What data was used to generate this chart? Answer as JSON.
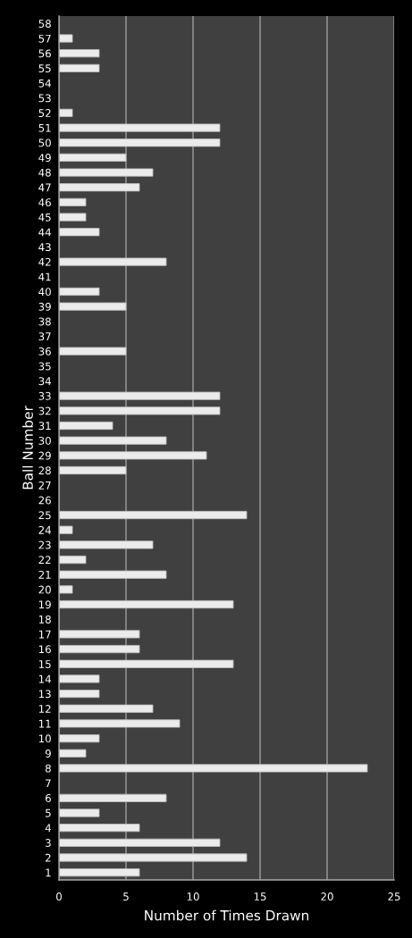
{
  "chart_data": {
    "type": "bar",
    "orientation": "horizontal",
    "categories": [
      "58",
      "57",
      "56",
      "55",
      "54",
      "53",
      "52",
      "51",
      "50",
      "49",
      "48",
      "47",
      "46",
      "45",
      "44",
      "43",
      "42",
      "41",
      "40",
      "39",
      "38",
      "37",
      "36",
      "35",
      "34",
      "33",
      "32",
      "31",
      "30",
      "29",
      "28",
      "27",
      "26",
      "25",
      "24",
      "23",
      "22",
      "21",
      "20",
      "19",
      "18",
      "17",
      "16",
      "15",
      "14",
      "13",
      "12",
      "11",
      "10",
      "9",
      "8",
      "7",
      "6",
      "5",
      "4",
      "3",
      "2",
      "1"
    ],
    "values": [
      0,
      1,
      3,
      3,
      0,
      0,
      1,
      12,
      12,
      5,
      7,
      6,
      2,
      2,
      3,
      0,
      8,
      0,
      3,
      5,
      0,
      0,
      5,
      0,
      0,
      12,
      12,
      4,
      8,
      11,
      5,
      0,
      0,
      14,
      1,
      7,
      2,
      8,
      1,
      13,
      0,
      6,
      6,
      13,
      3,
      3,
      7,
      9,
      3,
      2,
      23,
      0,
      8,
      3,
      6,
      12,
      14,
      6
    ],
    "color": "#ebebeb",
    "xlabel": "Number of Times Drawn",
    "ylabel": "Ball Number",
    "xlim": [
      0,
      25
    ],
    "xticks": [
      0,
      5,
      10,
      15,
      20,
      25
    ],
    "grid": "x"
  }
}
